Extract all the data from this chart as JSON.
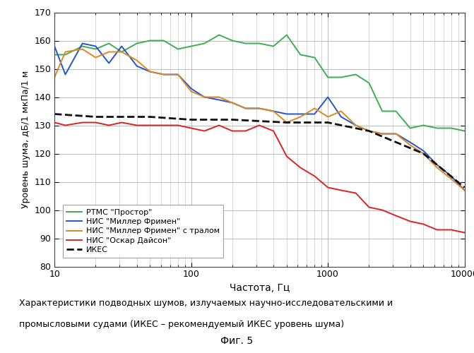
{
  "xlabel": "Частота, Гц",
  "ylabel": "Уровень шума, дБ/1 мкПа/1 м",
  "caption_line1": "Характеристики подводных шумов, излучаемых научно-исследовательскими и",
  "caption_line2": "промысловыми судами (ИКЕС – рекомендуемый ИКЕС уровень шума)",
  "fig_label": "Фиг. 5",
  "ylim": [
    80,
    170
  ],
  "xlim": [
    10,
    10000
  ],
  "yticks": [
    80,
    90,
    100,
    110,
    120,
    130,
    140,
    150,
    160,
    170
  ],
  "legend": [
    {
      "label": "РТМС \"Простор\"",
      "color": "#3cb050",
      "lw": 1.4,
      "ls": "-"
    },
    {
      "label": "НИС \"Миллер Фримен\"",
      "color": "#2255cc",
      "lw": 1.4,
      "ls": "-"
    },
    {
      "label": "НИС \"Миллер Фримен\" с тралом",
      "color": "#dd8822",
      "lw": 1.4,
      "ls": "-"
    },
    {
      "label": "НИС \"Оскар Дайсон\"",
      "color": "#dd2222",
      "lw": 1.4,
      "ls": "-"
    },
    {
      "label": "ИКЕС",
      "color": "#111111",
      "lw": 2.0,
      "ls": "--"
    }
  ],
  "series": {
    "prostor_x": [
      10,
      12,
      16,
      20,
      25,
      31,
      40,
      50,
      63,
      80,
      100,
      125,
      160,
      200,
      250,
      315,
      400,
      500,
      630,
      800,
      1000,
      1250,
      1600,
      2000,
      2500,
      3150,
      4000,
      5000,
      6300,
      8000,
      10000
    ],
    "prostor_y": [
      155,
      155,
      158,
      157,
      159,
      156,
      159,
      160,
      160,
      157,
      158,
      159,
      162,
      160,
      159,
      159,
      158,
      162,
      155,
      154,
      147,
      147,
      148,
      145,
      135,
      135,
      129,
      130,
      129,
      129,
      128
    ],
    "miller_x": [
      10,
      12,
      16,
      20,
      25,
      31,
      40,
      50,
      63,
      80,
      100,
      125,
      160,
      200,
      250,
      315,
      400,
      500,
      630,
      800,
      1000,
      1250,
      1600,
      2000,
      2500,
      3150,
      4000,
      5000,
      6300,
      8000,
      10000
    ],
    "miller_y": [
      158,
      148,
      159,
      158,
      152,
      158,
      151,
      149,
      148,
      148,
      143,
      140,
      139,
      138,
      136,
      136,
      135,
      134,
      134,
      134,
      140,
      133,
      130,
      128,
      127,
      127,
      124,
      121,
      116,
      112,
      107
    ],
    "miller_trawl_x": [
      10,
      12,
      16,
      20,
      25,
      31,
      40,
      50,
      63,
      80,
      100,
      125,
      160,
      200,
      250,
      315,
      400,
      500,
      630,
      800,
      1000,
      1250,
      1600,
      2000,
      2500,
      3150,
      4000,
      5000,
      6300,
      8000,
      10000
    ],
    "miller_trawl_y": [
      147,
      156,
      157,
      154,
      156,
      156,
      153,
      149,
      148,
      148,
      142,
      140,
      140,
      138,
      136,
      136,
      135,
      131,
      133,
      136,
      133,
      135,
      130,
      128,
      127,
      127,
      123,
      120,
      115,
      111,
      107
    ],
    "oskar_x": [
      10,
      12,
      16,
      20,
      25,
      31,
      40,
      50,
      63,
      80,
      100,
      125,
      160,
      200,
      250,
      315,
      400,
      500,
      630,
      800,
      1000,
      1250,
      1600,
      2000,
      2500,
      3150,
      4000,
      5000,
      6300,
      8000,
      10000
    ],
    "oskar_y": [
      131,
      130,
      131,
      131,
      130,
      131,
      130,
      130,
      130,
      130,
      129,
      128,
      130,
      128,
      128,
      130,
      128,
      119,
      115,
      112,
      108,
      107,
      106,
      101,
      100,
      98,
      96,
      95,
      93,
      93,
      92
    ],
    "ices_x": [
      10,
      20,
      50,
      100,
      200,
      500,
      1000,
      2000,
      5000,
      10000
    ],
    "ices_y": [
      134,
      133,
      133,
      132,
      132,
      131,
      131,
      128,
      120,
      108
    ]
  },
  "background_color": "#ffffff",
  "grid_color": "#bbbbbb"
}
